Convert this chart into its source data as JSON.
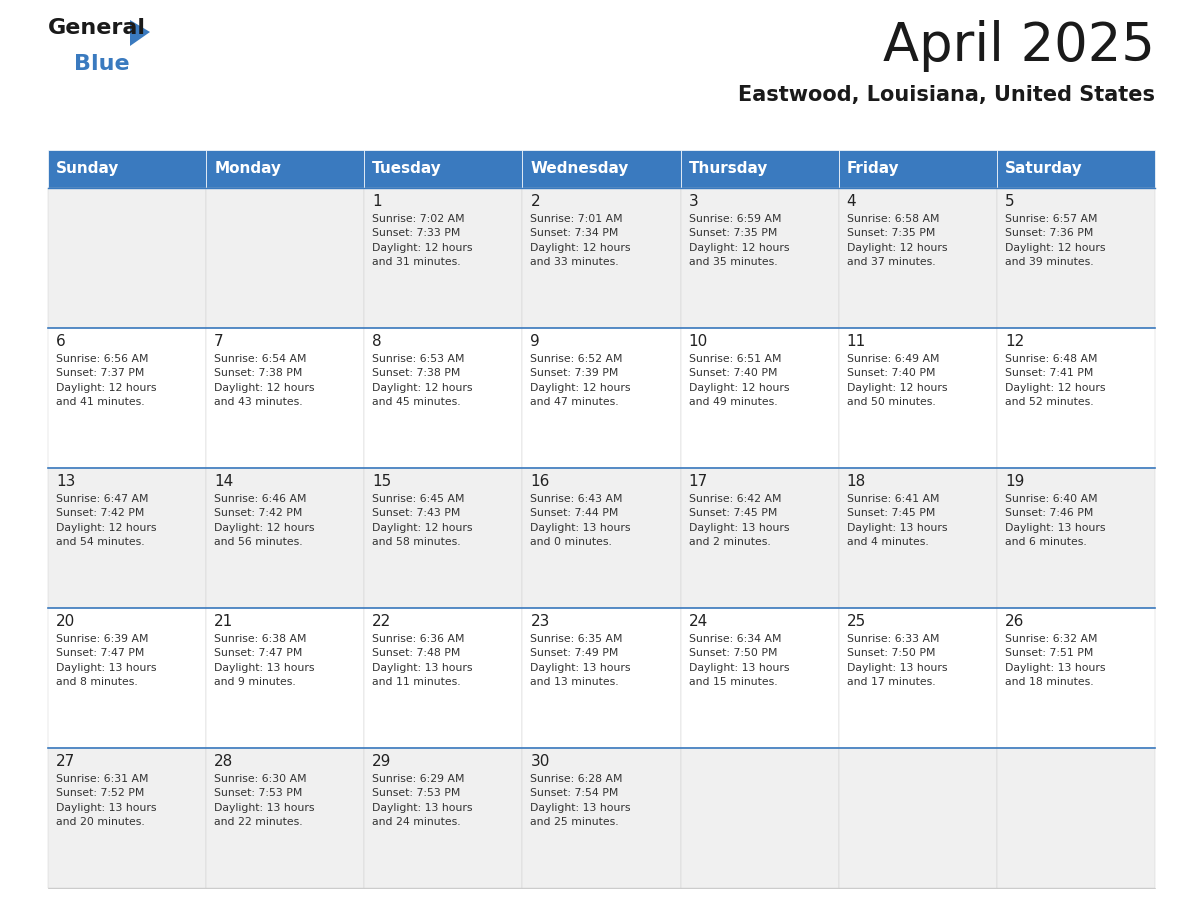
{
  "title": "April 2025",
  "subtitle": "Eastwood, Louisiana, United States",
  "header_bg": "#3a7abf",
  "header_text": "#ffffff",
  "days_of_week": [
    "Sunday",
    "Monday",
    "Tuesday",
    "Wednesday",
    "Thursday",
    "Friday",
    "Saturday"
  ],
  "row_bg_odd": "#f0f0f0",
  "row_bg_even": "#ffffff",
  "cell_text_color": "#333333",
  "day_num_color": "#222222",
  "line_color": "#3a7abf",
  "calendar": [
    [
      {
        "day": null,
        "text": ""
      },
      {
        "day": null,
        "text": ""
      },
      {
        "day": 1,
        "text": "Sunrise: 7:02 AM\nSunset: 7:33 PM\nDaylight: 12 hours\nand 31 minutes."
      },
      {
        "day": 2,
        "text": "Sunrise: 7:01 AM\nSunset: 7:34 PM\nDaylight: 12 hours\nand 33 minutes."
      },
      {
        "day": 3,
        "text": "Sunrise: 6:59 AM\nSunset: 7:35 PM\nDaylight: 12 hours\nand 35 minutes."
      },
      {
        "day": 4,
        "text": "Sunrise: 6:58 AM\nSunset: 7:35 PM\nDaylight: 12 hours\nand 37 minutes."
      },
      {
        "day": 5,
        "text": "Sunrise: 6:57 AM\nSunset: 7:36 PM\nDaylight: 12 hours\nand 39 minutes."
      }
    ],
    [
      {
        "day": 6,
        "text": "Sunrise: 6:56 AM\nSunset: 7:37 PM\nDaylight: 12 hours\nand 41 minutes."
      },
      {
        "day": 7,
        "text": "Sunrise: 6:54 AM\nSunset: 7:38 PM\nDaylight: 12 hours\nand 43 minutes."
      },
      {
        "day": 8,
        "text": "Sunrise: 6:53 AM\nSunset: 7:38 PM\nDaylight: 12 hours\nand 45 minutes."
      },
      {
        "day": 9,
        "text": "Sunrise: 6:52 AM\nSunset: 7:39 PM\nDaylight: 12 hours\nand 47 minutes."
      },
      {
        "day": 10,
        "text": "Sunrise: 6:51 AM\nSunset: 7:40 PM\nDaylight: 12 hours\nand 49 minutes."
      },
      {
        "day": 11,
        "text": "Sunrise: 6:49 AM\nSunset: 7:40 PM\nDaylight: 12 hours\nand 50 minutes."
      },
      {
        "day": 12,
        "text": "Sunrise: 6:48 AM\nSunset: 7:41 PM\nDaylight: 12 hours\nand 52 minutes."
      }
    ],
    [
      {
        "day": 13,
        "text": "Sunrise: 6:47 AM\nSunset: 7:42 PM\nDaylight: 12 hours\nand 54 minutes."
      },
      {
        "day": 14,
        "text": "Sunrise: 6:46 AM\nSunset: 7:42 PM\nDaylight: 12 hours\nand 56 minutes."
      },
      {
        "day": 15,
        "text": "Sunrise: 6:45 AM\nSunset: 7:43 PM\nDaylight: 12 hours\nand 58 minutes."
      },
      {
        "day": 16,
        "text": "Sunrise: 6:43 AM\nSunset: 7:44 PM\nDaylight: 13 hours\nand 0 minutes."
      },
      {
        "day": 17,
        "text": "Sunrise: 6:42 AM\nSunset: 7:45 PM\nDaylight: 13 hours\nand 2 minutes."
      },
      {
        "day": 18,
        "text": "Sunrise: 6:41 AM\nSunset: 7:45 PM\nDaylight: 13 hours\nand 4 minutes."
      },
      {
        "day": 19,
        "text": "Sunrise: 6:40 AM\nSunset: 7:46 PM\nDaylight: 13 hours\nand 6 minutes."
      }
    ],
    [
      {
        "day": 20,
        "text": "Sunrise: 6:39 AM\nSunset: 7:47 PM\nDaylight: 13 hours\nand 8 minutes."
      },
      {
        "day": 21,
        "text": "Sunrise: 6:38 AM\nSunset: 7:47 PM\nDaylight: 13 hours\nand 9 minutes."
      },
      {
        "day": 22,
        "text": "Sunrise: 6:36 AM\nSunset: 7:48 PM\nDaylight: 13 hours\nand 11 minutes."
      },
      {
        "day": 23,
        "text": "Sunrise: 6:35 AM\nSunset: 7:49 PM\nDaylight: 13 hours\nand 13 minutes."
      },
      {
        "day": 24,
        "text": "Sunrise: 6:34 AM\nSunset: 7:50 PM\nDaylight: 13 hours\nand 15 minutes."
      },
      {
        "day": 25,
        "text": "Sunrise: 6:33 AM\nSunset: 7:50 PM\nDaylight: 13 hours\nand 17 minutes."
      },
      {
        "day": 26,
        "text": "Sunrise: 6:32 AM\nSunset: 7:51 PM\nDaylight: 13 hours\nand 18 minutes."
      }
    ],
    [
      {
        "day": 27,
        "text": "Sunrise: 6:31 AM\nSunset: 7:52 PM\nDaylight: 13 hours\nand 20 minutes."
      },
      {
        "day": 28,
        "text": "Sunrise: 6:30 AM\nSunset: 7:53 PM\nDaylight: 13 hours\nand 22 minutes."
      },
      {
        "day": 29,
        "text": "Sunrise: 6:29 AM\nSunset: 7:53 PM\nDaylight: 13 hours\nand 24 minutes."
      },
      {
        "day": 30,
        "text": "Sunrise: 6:28 AM\nSunset: 7:54 PM\nDaylight: 13 hours\nand 25 minutes."
      },
      {
        "day": null,
        "text": ""
      },
      {
        "day": null,
        "text": ""
      },
      {
        "day": null,
        "text": ""
      }
    ]
  ],
  "logo_general_color": "#1a1a1a",
  "logo_blue_color": "#3a7abf",
  "logo_triangle_color": "#3a7abf"
}
